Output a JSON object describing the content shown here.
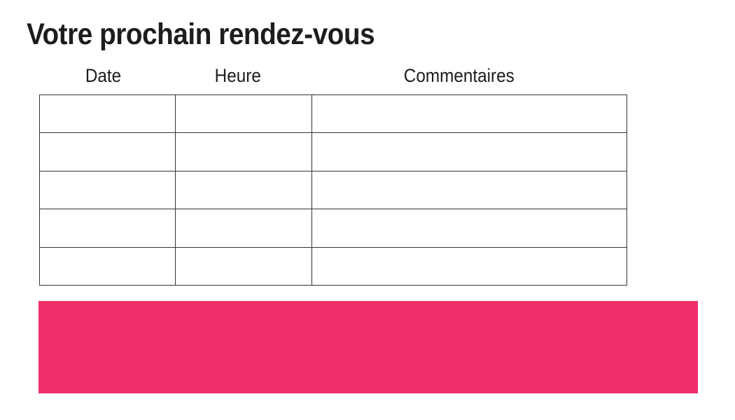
{
  "header": {
    "title": "Votre prochain rendez-vous"
  },
  "table": {
    "columns": [
      "Date",
      "Heure",
      "Commentaires"
    ],
    "row_count": 5,
    "cells": [
      [
        "",
        "",
        ""
      ],
      [
        "",
        "",
        ""
      ],
      [
        "",
        "",
        ""
      ],
      [
        "",
        "",
        ""
      ],
      [
        "",
        "",
        ""
      ]
    ]
  },
  "colors": {
    "banner_pink": "#ED2E68",
    "table_border": "#333333",
    "text": "#1d1d1b",
    "background": "#ffffff"
  }
}
